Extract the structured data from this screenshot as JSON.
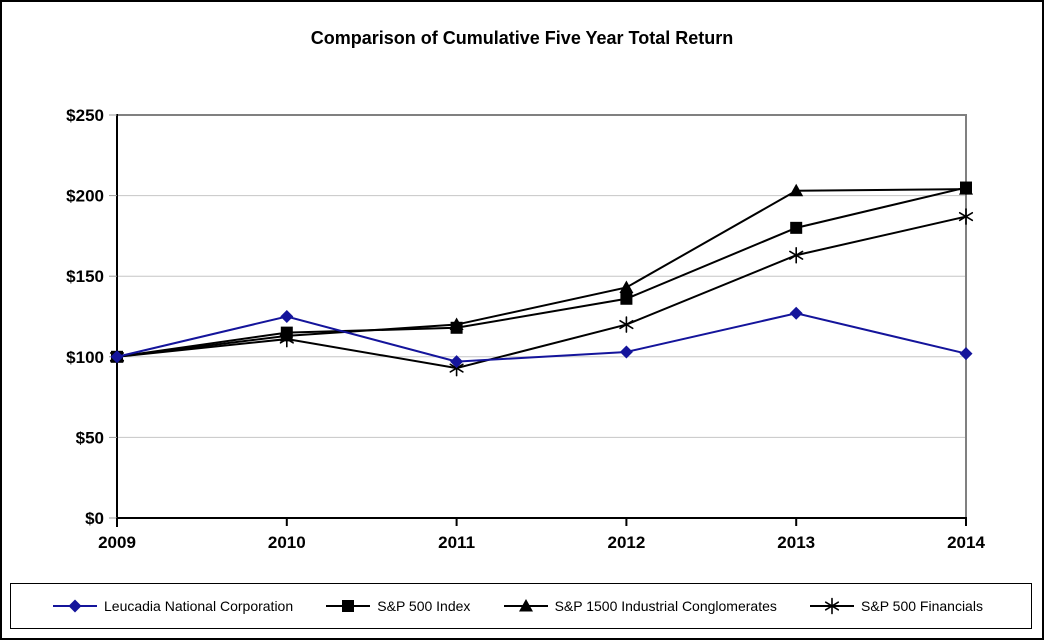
{
  "chart_data": {
    "type": "line",
    "title": "Comparison of Cumulative Five Year Total Return",
    "categories": [
      "2009",
      "2010",
      "2011",
      "2012",
      "2013",
      "2014"
    ],
    "series": [
      {
        "name": "Leucadia National Corporation",
        "marker": "diamond",
        "color": "#14149B",
        "values": [
          100,
          125,
          97,
          103,
          127,
          102
        ]
      },
      {
        "name": "S&P 500 Index",
        "marker": "square",
        "color": "#000000",
        "values": [
          100,
          115,
          118,
          136,
          180,
          205
        ]
      },
      {
        "name": "S&P 1500 Industrial Conglomerates",
        "marker": "triangle",
        "color": "#000000",
        "values": [
          100,
          113,
          120,
          143,
          203,
          204
        ]
      },
      {
        "name": "S&P 500 Financials",
        "marker": "asterisk",
        "color": "#000000",
        "values": [
          100,
          111,
          93,
          120,
          163,
          187
        ]
      }
    ],
    "xlabel": "",
    "ylabel": "",
    "ylim": [
      0,
      250
    ],
    "y_ticks": [
      0,
      50,
      100,
      150,
      200,
      250
    ],
    "y_tick_labels": [
      "$0",
      "$50",
      "$100",
      "$150",
      "$200",
      "$250"
    ],
    "grid": true,
    "legend_position": "bottom"
  },
  "colors": {
    "background": "#ffffff",
    "outer_border": "#000000",
    "axis": "#000000",
    "plot_border": "#808080",
    "gridline": "#c6c6c6"
  }
}
